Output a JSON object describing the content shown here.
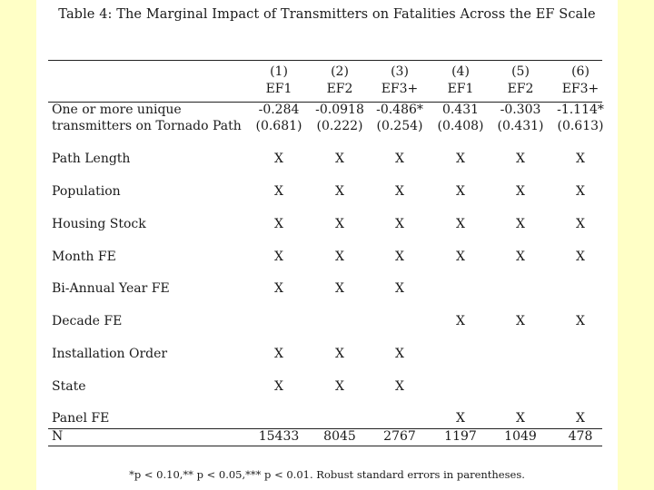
{
  "caption": "Table 4: The Marginal Impact of Transmitters on Fatalities Across the EF Scale",
  "columns": [
    {
      "num": "(1)",
      "name": "EF1"
    },
    {
      "num": "(2)",
      "name": "EF2"
    },
    {
      "num": "(3)",
      "name": "EF3+"
    },
    {
      "num": "(4)",
      "name": "EF1"
    },
    {
      "num": "(5)",
      "name": "EF2"
    },
    {
      "num": "(6)",
      "name": "EF3+"
    }
  ],
  "coef_row": {
    "label_line1": "One or more unique",
    "label_line2": "transmitters on Tornado Path",
    "coefs": [
      "-0.284",
      "-0.0918",
      "-0.486*",
      "0.431",
      "-0.303",
      "-1.114*"
    ],
    "ses": [
      "(0.681)",
      "(0.222)",
      "(0.254)",
      "(0.408)",
      "(0.431)",
      "(0.613)"
    ]
  },
  "control_rows": [
    {
      "label": "Path Length",
      "marks": [
        "X",
        "X",
        "X",
        "X",
        "X",
        "X"
      ]
    },
    {
      "label": "Population",
      "marks": [
        "X",
        "X",
        "X",
        "X",
        "X",
        "X"
      ]
    },
    {
      "label": "Housing Stock",
      "marks": [
        "X",
        "X",
        "X",
        "X",
        "X",
        "X"
      ]
    },
    {
      "label": "Month FE",
      "marks": [
        "X",
        "X",
        "X",
        "X",
        "X",
        "X"
      ]
    },
    {
      "label": "Bi-Annual Year FE",
      "marks": [
        "X",
        "X",
        "X",
        "",
        "",
        ""
      ]
    },
    {
      "label": "Decade FE",
      "marks": [
        "",
        "",
        "",
        "X",
        "X",
        "X"
      ]
    },
    {
      "label": "Installation Order",
      "marks": [
        "X",
        "X",
        "X",
        "",
        "",
        ""
      ]
    },
    {
      "label": "State",
      "marks": [
        "X",
        "X",
        "X",
        "",
        "",
        ""
      ]
    },
    {
      "label": "Panel FE",
      "marks": [
        "",
        "",
        "",
        "X",
        "X",
        "X"
      ]
    }
  ],
  "n_row": {
    "label": "N",
    "values": [
      "15433",
      "8045",
      "2767",
      "1197",
      "1049",
      "478"
    ]
  },
  "footnote": "*p < 0.10,** p < 0.05,*** p < 0.01. Robust standard errors in parentheses."
}
